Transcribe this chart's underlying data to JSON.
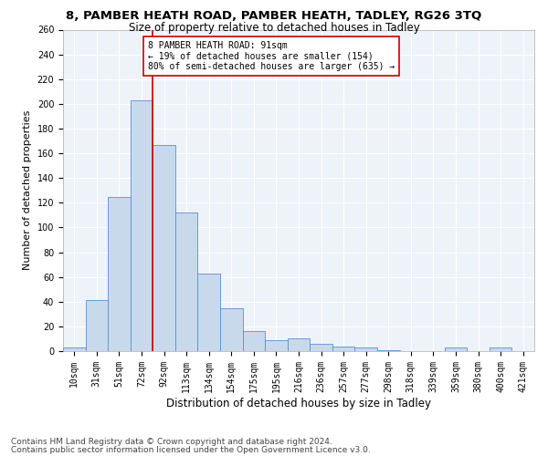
{
  "title1": "8, PAMBER HEATH ROAD, PAMBER HEATH, TADLEY, RG26 3TQ",
  "title2": "Size of property relative to detached houses in Tadley",
  "xlabel": "Distribution of detached houses by size in Tadley",
  "ylabel": "Number of detached properties",
  "footer1": "Contains HM Land Registry data © Crown copyright and database right 2024.",
  "footer2": "Contains public sector information licensed under the Open Government Licence v3.0.",
  "annotation_line1": "8 PAMBER HEATH ROAD: 91sqm",
  "annotation_line2": "← 19% of detached houses are smaller (154)",
  "annotation_line3": "80% of semi-detached houses are larger (635) →",
  "bar_labels": [
    "10sqm",
    "31sqm",
    "51sqm",
    "72sqm",
    "92sqm",
    "113sqm",
    "134sqm",
    "154sqm",
    "175sqm",
    "195sqm",
    "216sqm",
    "236sqm",
    "257sqm",
    "277sqm",
    "298sqm",
    "318sqm",
    "339sqm",
    "359sqm",
    "380sqm",
    "400sqm",
    "421sqm"
  ],
  "bar_heights": [
    3,
    41,
    125,
    203,
    167,
    112,
    63,
    35,
    16,
    9,
    10,
    6,
    4,
    3,
    1,
    0,
    0,
    3,
    0,
    3,
    0
  ],
  "bar_color": "#c9d9ec",
  "bar_edge_color": "#5b8fc9",
  "vline_color": "#cc0000",
  "annotation_box_edge": "#cc0000",
  "ylim": [
    0,
    260
  ],
  "yticks": [
    0,
    20,
    40,
    60,
    80,
    100,
    120,
    140,
    160,
    180,
    200,
    220,
    240,
    260
  ],
  "bg_color": "#eef3f9",
  "grid_color": "#ffffff",
  "title1_fontsize": 9.5,
  "title2_fontsize": 8.5,
  "axis_label_fontsize": 8,
  "tick_fontsize": 7,
  "annotation_fontsize": 7,
  "footer_fontsize": 6.5
}
